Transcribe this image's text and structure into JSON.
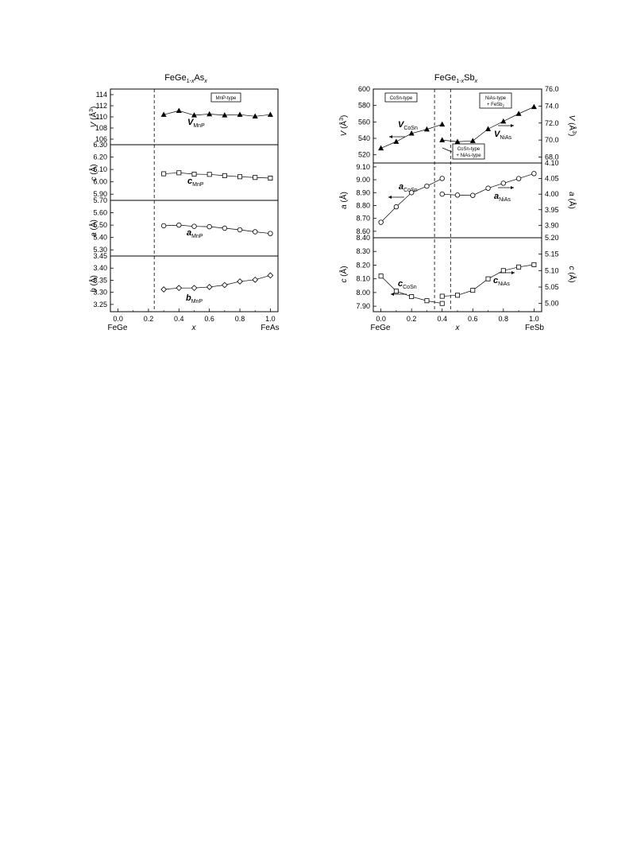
{
  "chart_data": [
    {
      "type": "scatter",
      "title": "FeGe1-xAsx",
      "xlabel": "x",
      "xlim": [
        -0.05,
        1.05
      ],
      "x_ticks": [
        "0.0",
        "0.2",
        "0.4",
        "0.6",
        "0.8",
        "1.0"
      ],
      "x_end_labels": {
        "left": "FeGe",
        "right": "FeAs"
      },
      "boundary_x": 0.25,
      "box_label": "MnP-type",
      "panels": [
        {
          "ylabel": "V (Å3)",
          "ylim": [
            105,
            115
          ],
          "yticks": [
            "106",
            "108",
            "110",
            "112",
            "114"
          ],
          "series": [
            {
              "label": "VMnP",
              "marker": "tri_filled",
              "x": [
                0.3,
                0.4,
                0.5,
                0.6,
                0.7,
                0.8,
                0.9,
                1.0
              ],
              "y": [
                110.4,
                111.1,
                110.3,
                110.5,
                110.3,
                110.4,
                110.1,
                110.4
              ]
            }
          ]
        },
        {
          "ylabel": "c (Å)",
          "ylim": [
            5.85,
            6.3
          ],
          "yticks": [
            "5.90",
            "6.00",
            "6.10",
            "6.20",
            "6.30"
          ],
          "series": [
            {
              "label": "cMnP",
              "marker": "square",
              "x": [
                0.3,
                0.4,
                0.5,
                0.6,
                0.7,
                0.8,
                0.9,
                1.0
              ],
              "y": [
                6.065,
                6.073,
                6.062,
                6.06,
                6.05,
                6.041,
                6.035,
                6.03
              ]
            }
          ]
        },
        {
          "ylabel": "a (Å)",
          "ylim": [
            5.25,
            5.7
          ],
          "yticks": [
            "5.30",
            "5.40",
            "5.50",
            "5.60",
            "5.70"
          ],
          "series": [
            {
              "label": "aMnP",
              "marker": "circle",
              "x": [
                0.3,
                0.4,
                0.5,
                0.6,
                0.7,
                0.8,
                0.9,
                1.0
              ],
              "y": [
                5.495,
                5.5,
                5.49,
                5.487,
                5.475,
                5.462,
                5.446,
                5.432
              ]
            }
          ]
        },
        {
          "ylabel": "b (Å)",
          "ylim": [
            3.22,
            3.45
          ],
          "yticks": [
            "3.25",
            "3.30",
            "3.35",
            "3.40",
            "3.45"
          ],
          "series": [
            {
              "label": "bMnP",
              "marker": "diamond",
              "x": [
                0.3,
                0.4,
                0.5,
                0.6,
                0.7,
                0.8,
                0.9,
                1.0
              ],
              "y": [
                3.312,
                3.318,
                3.318,
                3.322,
                3.33,
                3.345,
                3.352,
                3.37
              ]
            }
          ]
        }
      ]
    },
    {
      "type": "scatter",
      "title": "FeGe1-xSbx",
      "xlabel": "x",
      "xlim": [
        -0.05,
        1.05
      ],
      "x_ticks": [
        "0.0",
        "0.2",
        "0.4",
        "0.6",
        "0.8",
        "1.0"
      ],
      "x_end_labels": {
        "left": "FeGe",
        "right": "FeSb"
      },
      "boundaries_x": [
        0.35,
        0.45
      ],
      "box_labels": [
        "CoSn-type",
        "NiAs-type + FeSb2",
        "CoSn-type + NiAs-type"
      ],
      "panels": [
        {
          "ylabel": "V (Å3)",
          "ylabel_right": "V (Å3)",
          "ylim": [
            510,
            600
          ],
          "yticks": [
            "520",
            "540",
            "560",
            "580",
            "600"
          ],
          "ylim_right": [
            67.3,
            76.0
          ],
          "yticks_right": [
            "68.0",
            "70.0",
            "72.0",
            "74.0",
            "76.0"
          ],
          "series": [
            {
              "label": "VCoSn",
              "marker": "tri_filled",
              "axis": "left",
              "x": [
                0.0,
                0.1,
                0.2,
                0.3,
                0.4
              ],
              "y": [
                528,
                536,
                546,
                551,
                557
              ]
            },
            {
              "label": "VNiAs",
              "marker": "tri_filled",
              "axis": "right",
              "x": [
                0.4,
                0.5,
                0.6,
                0.7,
                0.8,
                0.9,
                1.0
              ],
              "y": [
                70.0,
                69.8,
                69.9,
                71.3,
                72.2,
                73.1,
                73.9
              ]
            }
          ]
        },
        {
          "ylabel": "a (Å)",
          "ylabel_right": "a (Å)",
          "ylim": [
            8.55,
            9.13
          ],
          "yticks": [
            "8.60",
            "8.70",
            "8.80",
            "8.90",
            "9.00",
            "9.10"
          ],
          "ylim_right": [
            3.86,
            4.1
          ],
          "yticks_right": [
            "3.90",
            "3.95",
            "4.00",
            "4.05",
            "4.10"
          ],
          "series": [
            {
              "label": "aCoSn",
              "marker": "circle",
              "axis": "left",
              "x": [
                0.0,
                0.1,
                0.2,
                0.3,
                0.4
              ],
              "y": [
                8.67,
                8.79,
                8.9,
                8.95,
                9.01
              ]
            },
            {
              "label": "aNiAs",
              "marker": "circle",
              "axis": "right",
              "x": [
                0.4,
                0.5,
                0.6,
                0.7,
                0.8,
                0.9,
                1.0
              ],
              "y": [
                4.0,
                3.997,
                3.996,
                4.019,
                4.035,
                4.05,
                4.066
              ]
            }
          ]
        },
        {
          "ylabel": "c (Å)",
          "ylabel_right": "c (Å)",
          "ylim": [
            7.86,
            8.4
          ],
          "yticks": [
            "7.90",
            "8.00",
            "8.10",
            "8.20",
            "8.30",
            "8.40"
          ],
          "ylim_right": [
            4.975,
            5.2
          ],
          "yticks_right": [
            "5.00",
            "5.05",
            "5.10",
            "5.15",
            "5.20"
          ],
          "series": [
            {
              "label": "cCoSn",
              "marker": "square",
              "axis": "left",
              "x": [
                0.0,
                0.1,
                0.2,
                0.3,
                0.4
              ],
              "y": [
                8.12,
                8.01,
                7.97,
                7.94,
                7.92
              ]
            },
            {
              "label": "cNiAs",
              "marker": "square",
              "axis": "right",
              "x": [
                0.4,
                0.5,
                0.6,
                0.7,
                0.8,
                0.9,
                1.0
              ],
              "y": [
                5.022,
                5.025,
                5.04,
                5.075,
                5.1,
                5.111,
                5.118
              ]
            }
          ]
        }
      ]
    }
  ]
}
